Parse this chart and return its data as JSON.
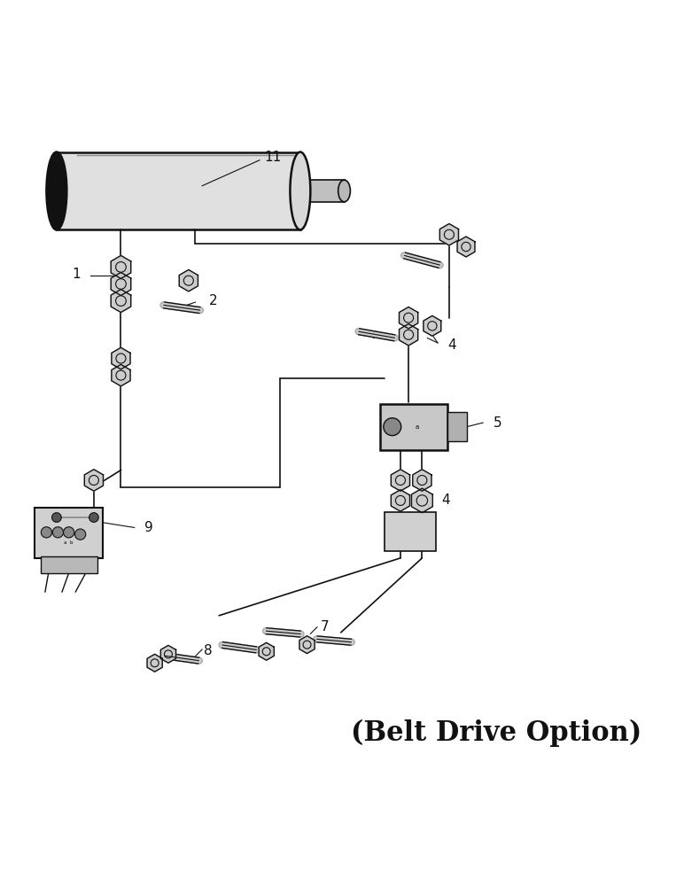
{
  "title": "(Belt Drive Option)",
  "title_fontsize": 22,
  "bg_color": "#ffffff",
  "line_color": "#111111",
  "fig_width": 7.72,
  "fig_height": 10.0
}
